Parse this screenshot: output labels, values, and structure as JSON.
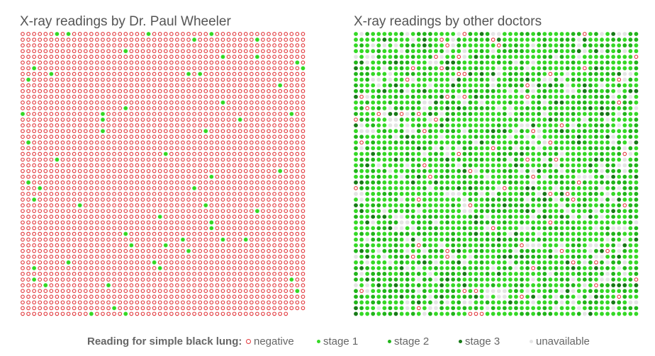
{
  "chart_data": [
    {
      "type": "scatter",
      "title": "X-ray readings by Dr. Paul Wheeler",
      "layout": "dot-matrix",
      "columns": 50,
      "rows": 50,
      "total_dots": 2500,
      "counts": {
        "negative": 2440,
        "stage1": 60,
        "stage2": 0,
        "stage3": 0,
        "unavailable": 0
      },
      "last_row_filled": 47
    },
    {
      "type": "scatter",
      "title": "X-ray readings by other doctors",
      "layout": "dot-matrix",
      "columns": 50,
      "rows": 50,
      "total_dots": 2500,
      "counts": {
        "negative": 75,
        "stage1": 1275,
        "stage2": 700,
        "stage3": 150,
        "unavailable": 300
      }
    }
  ],
  "legend": {
    "title": "Reading for simple black lung:",
    "items": [
      {
        "key": "negative",
        "label": "negative"
      },
      {
        "key": "stage1",
        "label": "stage 1"
      },
      {
        "key": "stage2",
        "label": "stage 2"
      },
      {
        "key": "stage3",
        "label": "stage 3"
      },
      {
        "key": "unavailable",
        "label": "unavailable"
      }
    ]
  },
  "colors": {
    "negative": "#e2373b",
    "stage1": "#35d926",
    "stage2": "#21b51a",
    "stage3": "#177a17",
    "unavailable": "#e4e4e4",
    "title_text": "#555555",
    "legend_text": "#666666"
  }
}
